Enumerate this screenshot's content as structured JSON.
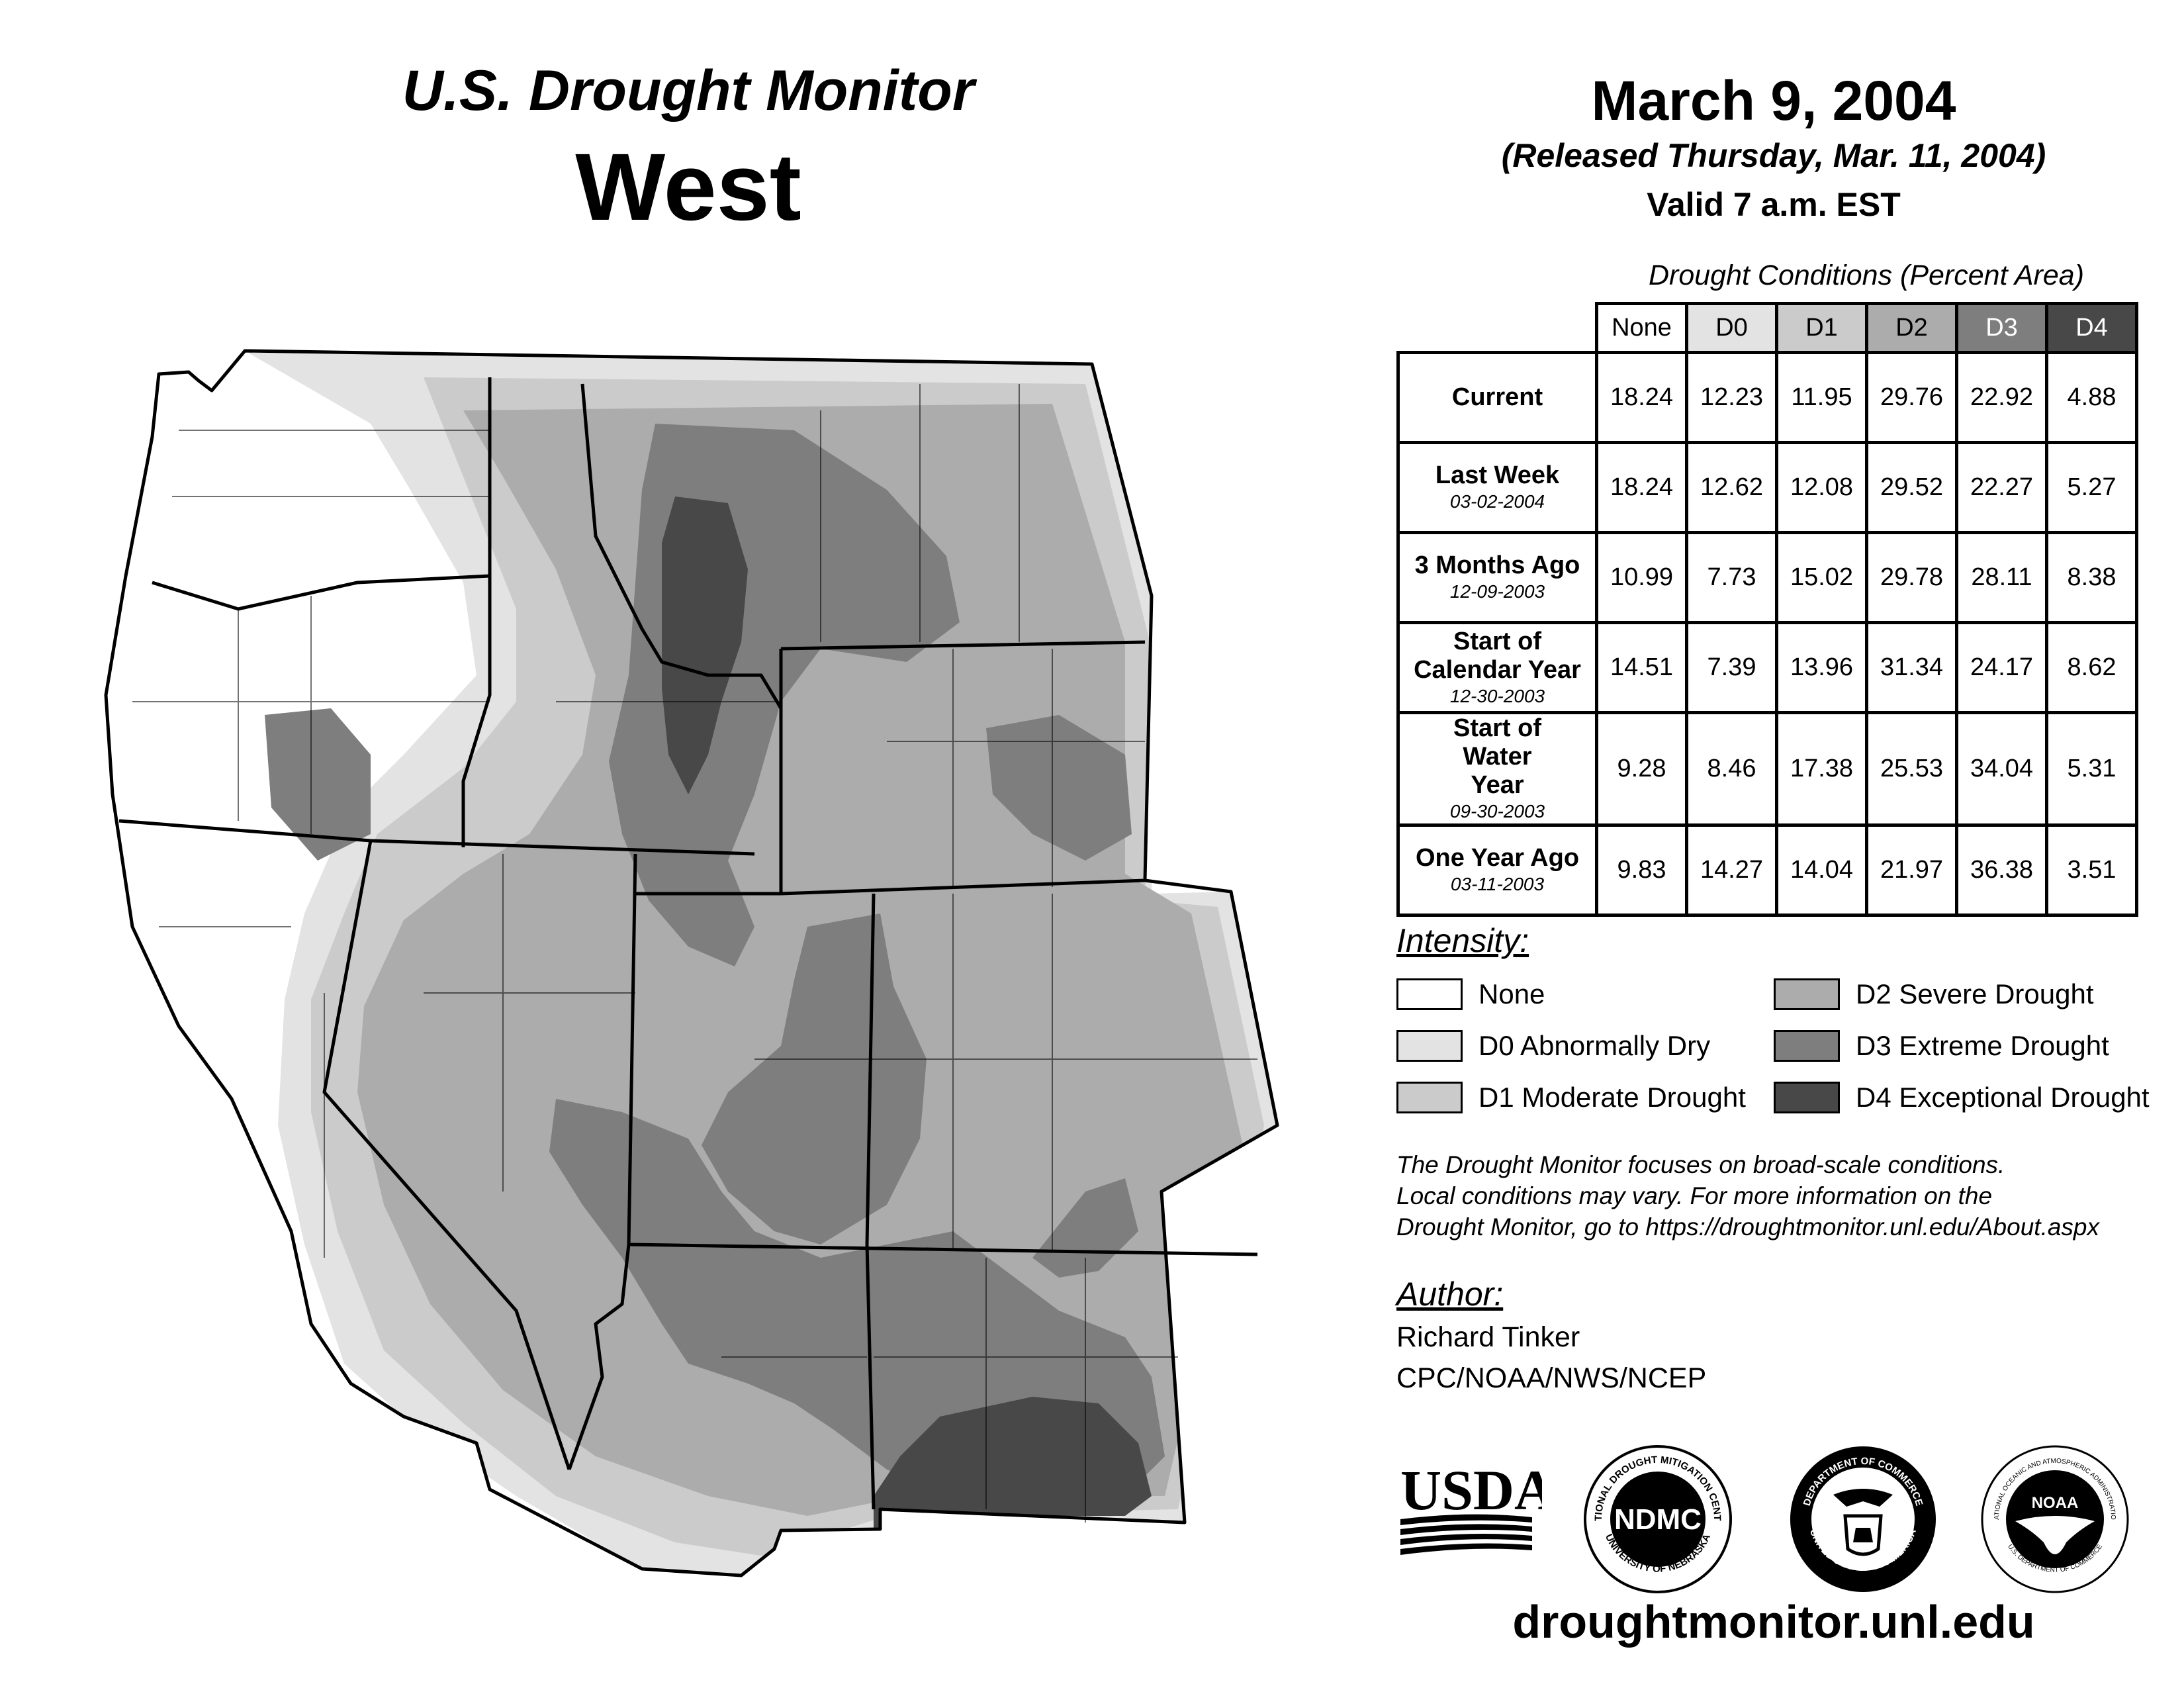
{
  "header": {
    "product": "U.S. Drought Monitor",
    "region": "West",
    "date": "March 9, 2004",
    "released": "(Released Thursday, Mar. 11, 2004)",
    "valid": "Valid 7 a.m. EST"
  },
  "table": {
    "caption": "Drought Conditions (Percent Area)",
    "columns": [
      "None",
      "D0",
      "D1",
      "D2",
      "D3",
      "D4"
    ],
    "rows": [
      {
        "label": "Current",
        "date": "",
        "values": [
          "18.24",
          "12.23",
          "11.95",
          "29.76",
          "22.92",
          "4.88"
        ]
      },
      {
        "label": "Last Week",
        "date": "03-02-2004",
        "values": [
          "18.24",
          "12.62",
          "12.08",
          "29.52",
          "22.27",
          "5.27"
        ]
      },
      {
        "label": "3 Months Ago",
        "date": "12-09-2003",
        "values": [
          "10.99",
          "7.73",
          "15.02",
          "29.78",
          "28.11",
          "8.38"
        ]
      },
      {
        "label": "Start of Calendar Year",
        "date": "12-30-2003",
        "values": [
          "14.51",
          "7.39",
          "13.96",
          "31.34",
          "24.17",
          "8.62"
        ]
      },
      {
        "label": "Start of Water Year",
        "date": "09-30-2003",
        "values": [
          "9.28",
          "8.46",
          "17.38",
          "25.53",
          "34.04",
          "5.31"
        ]
      },
      {
        "label": "One Year Ago",
        "date": "03-11-2003",
        "values": [
          "9.83",
          "14.27",
          "14.04",
          "21.97",
          "36.38",
          "3.51"
        ]
      }
    ]
  },
  "legend": {
    "title": "Intensity:",
    "items": [
      {
        "label": "None",
        "color": "#ffffff"
      },
      {
        "label": "D0 Abnormally Dry",
        "color": "#e3e3e3"
      },
      {
        "label": "D1 Moderate Drought",
        "color": "#cbcbcb"
      },
      {
        "label": "D2 Severe Drought",
        "color": "#acacac"
      },
      {
        "label": "D3 Extreme Drought",
        "color": "#7e7e7e"
      },
      {
        "label": "D4 Exceptional Drought",
        "color": "#484848"
      }
    ]
  },
  "disclaimer": {
    "line1": "The Drought Monitor focuses on broad-scale conditions.",
    "line2": "Local conditions may vary. For more information on the",
    "line3": "Drought Monitor, go to https://droughtmonitor.unl.edu/About.aspx"
  },
  "author": {
    "title": "Author:",
    "name": "Richard Tinker",
    "org": "CPC/NOAA/NWS/NCEP"
  },
  "logos": {
    "usda": "USDA",
    "ndmc": "NDMC",
    "ndmc_ring_top": "NATIONAL DROUGHT MITIGATION CENTER",
    "ndmc_ring_bottom": "UNIVERSITY OF NEBRASKA",
    "doc_ring_top": "DEPARTMENT OF COMMERCE",
    "doc_ring_bottom": "UNITED STATES OF AMERICA",
    "noaa": "NOAA",
    "noaa_ring_top": "NATIONAL OCEANIC AND ATMOSPHERIC ADMINISTRATION",
    "noaa_ring_bottom": "U.S. DEPARTMENT OF COMMERCE"
  },
  "footer": {
    "url": "droughtmonitor.unl.edu"
  }
}
